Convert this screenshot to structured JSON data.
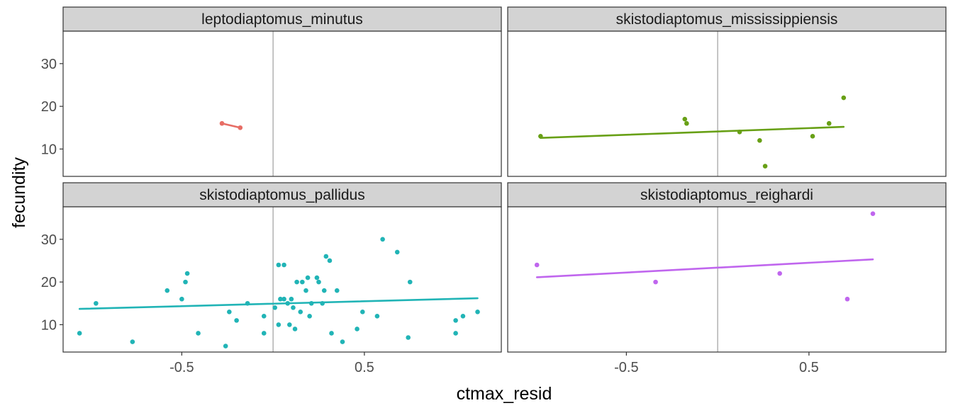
{
  "chart_data": {
    "type": "scatter",
    "xlabel": "ctmax_resid",
    "ylabel": "fecundity",
    "xlim": [
      -1.15,
      1.25
    ],
    "ylim": [
      3.6,
      37.6
    ],
    "x_ticks": [
      -0.5,
      0.5
    ],
    "x_tick_labels": [
      "-0.5",
      "0.5"
    ],
    "y_ticks": [
      10,
      20,
      30
    ],
    "y_tick_labels": [
      "10",
      "20",
      "30"
    ],
    "reference_vline_x": 0,
    "grid": false,
    "legend": "none",
    "facets": [
      {
        "name": "leptodiaptomus_minutus",
        "color": "#E76D65",
        "points": [
          [
            -0.28,
            16
          ],
          [
            -0.18,
            15
          ]
        ],
        "trend": [
          [
            -0.28,
            16
          ],
          [
            -0.18,
            15
          ]
        ]
      },
      {
        "name": "skistodiaptomus_mississippiensis",
        "color": "#68A016",
        "points": [
          [
            -0.97,
            13
          ],
          [
            -0.18,
            17
          ],
          [
            -0.17,
            16
          ],
          [
            0.12,
            14
          ],
          [
            0.23,
            12
          ],
          [
            0.26,
            6
          ],
          [
            0.52,
            13
          ],
          [
            0.61,
            16
          ],
          [
            0.69,
            22
          ]
        ],
        "trend": [
          [
            -0.97,
            12.6
          ],
          [
            0.69,
            15.2
          ]
        ]
      },
      {
        "name": "skistodiaptomus_pallidus",
        "color": "#21B4B6",
        "points": [
          [
            -1.06,
            8
          ],
          [
            -0.97,
            15
          ],
          [
            -0.77,
            6
          ],
          [
            -0.58,
            18
          ],
          [
            -0.5,
            16
          ],
          [
            -0.48,
            20
          ],
          [
            -0.47,
            22
          ],
          [
            -0.41,
            8
          ],
          [
            -0.26,
            5
          ],
          [
            -0.24,
            13
          ],
          [
            -0.2,
            11
          ],
          [
            -0.14,
            15
          ],
          [
            -0.05,
            12
          ],
          [
            -0.05,
            8
          ],
          [
            0.01,
            14
          ],
          [
            0.03,
            24
          ],
          [
            0.03,
            10
          ],
          [
            0.04,
            16
          ],
          [
            0.06,
            16
          ],
          [
            0.06,
            24
          ],
          [
            0.08,
            15
          ],
          [
            0.09,
            10
          ],
          [
            0.1,
            16
          ],
          [
            0.11,
            14
          ],
          [
            0.12,
            9
          ],
          [
            0.13,
            20
          ],
          [
            0.15,
            13
          ],
          [
            0.16,
            20
          ],
          [
            0.18,
            18
          ],
          [
            0.19,
            21
          ],
          [
            0.2,
            12
          ],
          [
            0.21,
            15
          ],
          [
            0.24,
            21
          ],
          [
            0.25,
            20
          ],
          [
            0.27,
            15
          ],
          [
            0.28,
            18
          ],
          [
            0.29,
            26
          ],
          [
            0.31,
            25
          ],
          [
            0.32,
            8
          ],
          [
            0.35,
            18
          ],
          [
            0.38,
            6
          ],
          [
            0.46,
            9
          ],
          [
            0.49,
            13
          ],
          [
            0.57,
            12
          ],
          [
            0.6,
            30
          ],
          [
            0.68,
            27
          ],
          [
            0.74,
            7
          ],
          [
            0.75,
            20
          ],
          [
            1.0,
            8
          ],
          [
            1.0,
            11
          ],
          [
            1.04,
            12
          ],
          [
            1.12,
            13
          ]
        ],
        "trend": [
          [
            -1.06,
            13.7
          ],
          [
            1.12,
            16.2
          ]
        ]
      },
      {
        "name": "skistodiaptomus_reighardi",
        "color": "#C066EE",
        "points": [
          [
            -0.99,
            24
          ],
          [
            -0.34,
            20
          ],
          [
            0.34,
            22
          ],
          [
            0.71,
            16
          ],
          [
            0.85,
            36
          ]
        ],
        "trend": [
          [
            -0.99,
            21.1
          ],
          [
            0.85,
            25.3
          ]
        ]
      }
    ]
  }
}
